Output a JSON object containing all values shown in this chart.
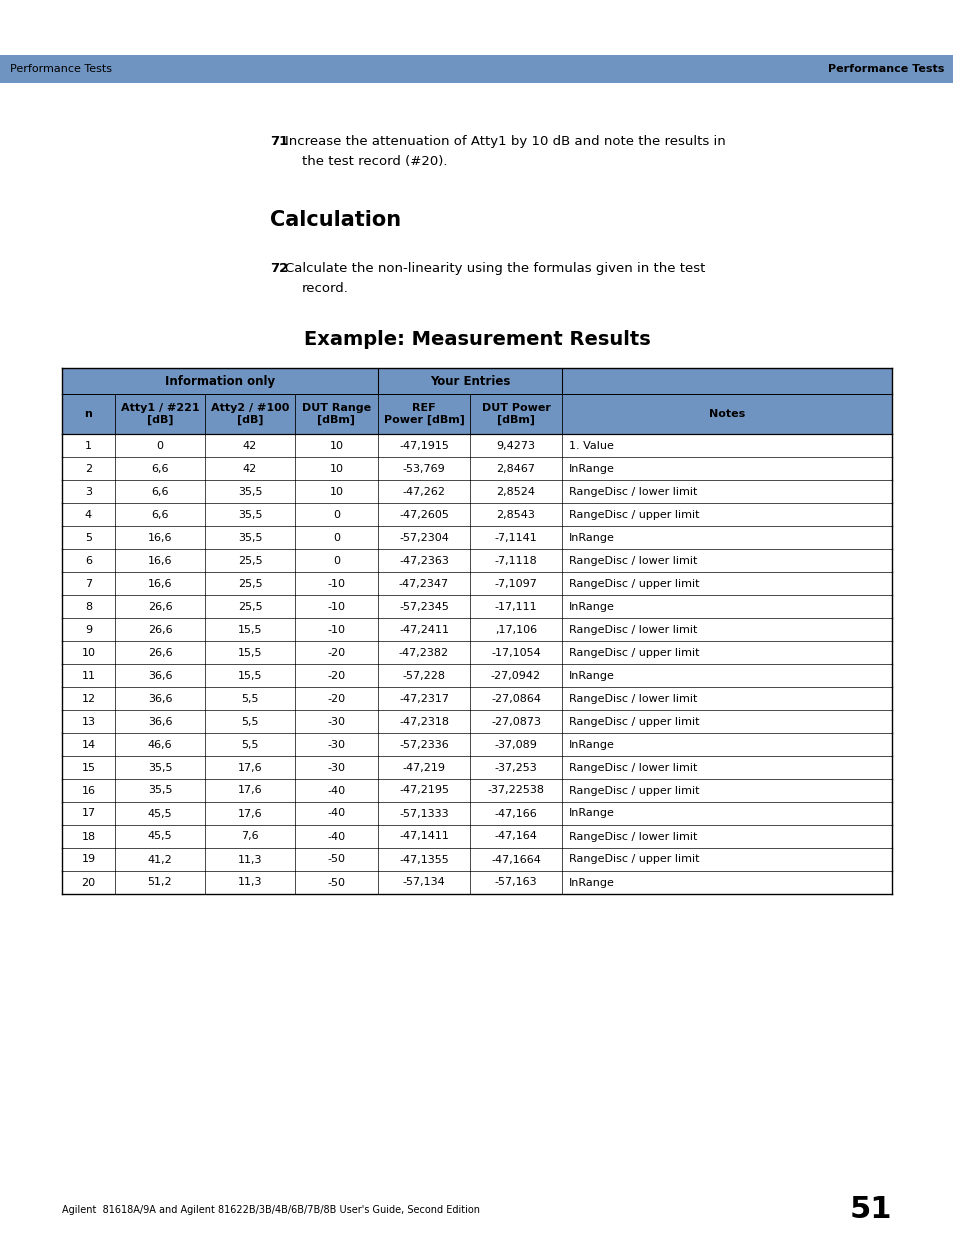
{
  "header_bg": "#7094c1",
  "page_bg": "#ffffff",
  "top_bar_color": "#7094c1",
  "top_bar_text_left": "Performance Tests",
  "top_bar_text_right": "Performance Tests",
  "bottom_text": "Agilent  81618A/9A and Agilent 81622B/3B/4B/6B/7B/8B User's Guide, Second Edition",
  "page_number": "51",
  "section_calc": "Calculation",
  "table_title": "Example: Measurement Results",
  "col_headers_row2": [
    "n",
    "Atty1 / #221\n[dB]",
    "Atty2 / #100\n[dB]",
    "DUT Range\n[dBm]",
    "REF\nPower [dBm]",
    "DUT Power\n[dBm]",
    "Notes"
  ],
  "table_data": [
    [
      "1",
      "0",
      "42",
      "10",
      "-47,1915",
      "9,4273",
      "1. Value"
    ],
    [
      "2",
      "6,6",
      "42",
      "10",
      "-53,769",
      "2,8467",
      "InRange"
    ],
    [
      "3",
      "6,6",
      "35,5",
      "10",
      "-47,262",
      "2,8524",
      "RangeDisc / lower limit"
    ],
    [
      "4",
      "6,6",
      "35,5",
      "0",
      "-47,2605",
      "2,8543",
      "RangeDisc / upper limit"
    ],
    [
      "5",
      "16,6",
      "35,5",
      "0",
      "-57,2304",
      "-7,1141",
      "InRange"
    ],
    [
      "6",
      "16,6",
      "25,5",
      "0",
      "-47,2363",
      "-7,1118",
      "RangeDisc / lower limit"
    ],
    [
      "7",
      "16,6",
      "25,5",
      "-10",
      "-47,2347",
      "-7,1097",
      "RangeDisc / upper limit"
    ],
    [
      "8",
      "26,6",
      "25,5",
      "-10",
      "-57,2345",
      "-17,111",
      "InRange"
    ],
    [
      "9",
      "26,6",
      "15,5",
      "-10",
      "-47,2411",
      ",17,106",
      "RangeDisc / lower limit"
    ],
    [
      "10",
      "26,6",
      "15,5",
      "-20",
      "-47,2382",
      "-17,1054",
      "RangeDisc / upper limit"
    ],
    [
      "11",
      "36,6",
      "15,5",
      "-20",
      "-57,228",
      "-27,0942",
      "InRange"
    ],
    [
      "12",
      "36,6",
      "5,5",
      "-20",
      "-47,2317",
      "-27,0864",
      "RangeDisc / lower limit"
    ],
    [
      "13",
      "36,6",
      "5,5",
      "-30",
      "-47,2318",
      "-27,0873",
      "RangeDisc / upper limit"
    ],
    [
      "14",
      "46,6",
      "5,5",
      "-30",
      "-57,2336",
      "-37,089",
      "InRange"
    ],
    [
      "15",
      "35,5",
      "17,6",
      "-30",
      "-47,219",
      "-37,253",
      "RangeDisc / lower limit"
    ],
    [
      "16",
      "35,5",
      "17,6",
      "-40",
      "-47,2195",
      "-37,22538",
      "RangeDisc / upper limit"
    ],
    [
      "17",
      "45,5",
      "17,6",
      "-40",
      "-57,1333",
      "-47,166",
      "InRange"
    ],
    [
      "18",
      "45,5",
      "7,6",
      "-40",
      "-47,1411",
      "-47,164",
      "RangeDisc / lower limit"
    ],
    [
      "19",
      "41,2",
      "11,3",
      "-50",
      "-47,1355",
      "-47,1664",
      "RangeDisc / upper limit"
    ],
    [
      "20",
      "51,2",
      "11,3",
      "-50",
      "-57,134",
      "-57,163",
      "InRange"
    ]
  ]
}
